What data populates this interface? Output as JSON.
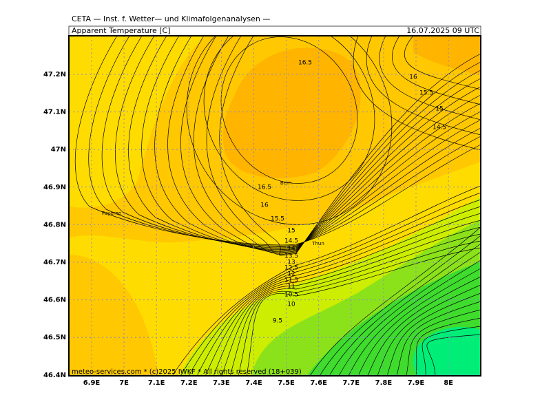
{
  "header": {
    "provider": "CETA — Inst. f. Wetter— und Klimafolgenanalysen —",
    "title": "Apparent Temperature [C]",
    "valid": "16.07.2025 09 UTC"
  },
  "footer": "meteo-services.com * (c)2025 IWKF * All rights reserved (18+039)",
  "lat_labels": [
    "47.2N",
    "47.1N",
    "47N",
    "46.9N",
    "46.8N",
    "46.7N",
    "46.6N",
    "46.5N",
    "46.4N"
  ],
  "lon_labels": [
    "6.9E",
    "7E",
    "7.1E",
    "7.2E",
    "7.3E",
    "7.4E",
    "7.5E",
    "7.6E",
    "7.7E",
    "7.8E",
    "7.9E",
    "8E"
  ],
  "places": [
    "Bern",
    "Payerne",
    "Thun"
  ],
  "contour_labels": [
    "16.5",
    "16",
    "15.5",
    "15",
    "14.5",
    "16.5",
    "16",
    "15.5",
    "15",
    "14.5",
    "14",
    "13.5",
    "13",
    "12.5",
    "12",
    "11.5",
    "11",
    "10.5",
    "10",
    "9.5"
  ]
}
